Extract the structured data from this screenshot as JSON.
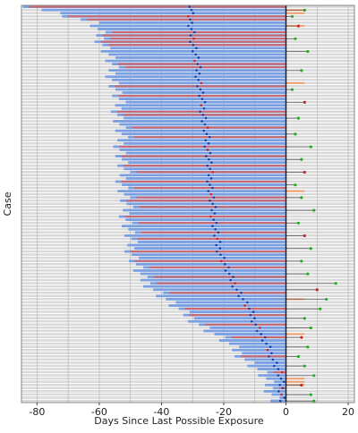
{
  "chart_data": {
    "type": "bar",
    "title": "",
    "xlabel": "Days Since Last Possible Exposure",
    "ylabel": "Case",
    "xlim": [
      -85,
      22
    ],
    "x_ticks": [
      -80,
      -60,
      -40,
      -20,
      0,
      20
    ],
    "grid": true,
    "legend": "none",
    "n_cases": 125,
    "colors": {
      "background_bar": "#d9d9d9",
      "blue_bar": "#7a9fe0",
      "red_bar": "#d46060",
      "orange_bar": "#f0a070",
      "green_dot": "#22aa22",
      "red_dot": "#cc2222",
      "blue_dot": "#1144aa",
      "zero_line": "#222222",
      "grid": "#b0b0b0"
    },
    "anchors": [
      {
        "case": 0,
        "onset": -82,
        "marker": -30
      },
      {
        "case": 5,
        "onset": -62,
        "marker": -31
      },
      {
        "case": 15,
        "onset": -57,
        "marker": -29
      },
      {
        "case": 30,
        "onset": -54,
        "marker": -27
      },
      {
        "case": 45,
        "onset": -53,
        "marker": -25
      },
      {
        "case": 60,
        "onset": -52,
        "marker": -24
      },
      {
        "case": 75,
        "onset": -50,
        "marker": -22
      },
      {
        "case": 85,
        "onset": -47,
        "marker": -18
      },
      {
        "case": 95,
        "onset": -35,
        "marker": -12
      },
      {
        "case": 105,
        "onset": -20,
        "marker": -7
      },
      {
        "case": 115,
        "onset": -8,
        "marker": -2
      },
      {
        "case": 124,
        "onset": -3,
        "marker": -1
      }
    ],
    "red_cases": [
      0,
      3,
      4,
      8,
      9,
      10,
      11,
      12,
      18,
      19,
      25,
      28,
      33,
      34,
      38,
      41,
      44,
      47,
      50,
      52,
      55,
      57,
      60,
      61,
      63,
      66,
      68,
      71,
      73,
      77,
      80,
      82,
      85,
      87,
      90,
      95,
      97,
      100,
      104,
      110,
      115,
      120
    ],
    "orange_cases": [
      1,
      2,
      6,
      24,
      58,
      92,
      103,
      117,
      118,
      119
    ],
    "tail_points": [
      {
        "case": 1,
        "x": 6
      },
      {
        "case": 3,
        "x": 2
      },
      {
        "case": 6,
        "x": 4
      },
      {
        "case": 10,
        "x": 3
      },
      {
        "case": 14,
        "x": 7
      },
      {
        "case": 20,
        "x": 5
      },
      {
        "case": 26,
        "x": 2
      },
      {
        "case": 30,
        "x": 6
      },
      {
        "case": 35,
        "x": 4
      },
      {
        "case": 40,
        "x": 3
      },
      {
        "case": 44,
        "x": 8
      },
      {
        "case": 48,
        "x": 5
      },
      {
        "case": 52,
        "x": 6
      },
      {
        "case": 56,
        "x": 3
      },
      {
        "case": 60,
        "x": 5
      },
      {
        "case": 64,
        "x": 9
      },
      {
        "case": 68,
        "x": 4
      },
      {
        "case": 72,
        "x": 6
      },
      {
        "case": 76,
        "x": 8
      },
      {
        "case": 80,
        "x": 5
      },
      {
        "case": 84,
        "x": 7
      },
      {
        "case": 87,
        "x": 16
      },
      {
        "case": 89,
        "x": 10
      },
      {
        "case": 92,
        "x": 13
      },
      {
        "case": 95,
        "x": 11
      },
      {
        "case": 98,
        "x": 6
      },
      {
        "case": 101,
        "x": 8
      },
      {
        "case": 104,
        "x": 5
      },
      {
        "case": 107,
        "x": 7
      },
      {
        "case": 110,
        "x": 4
      },
      {
        "case": 113,
        "x": 6
      },
      {
        "case": 116,
        "x": 9
      },
      {
        "case": 119,
        "x": 5
      },
      {
        "case": 122,
        "x": 8
      },
      {
        "case": 124,
        "x": 9
      }
    ]
  }
}
